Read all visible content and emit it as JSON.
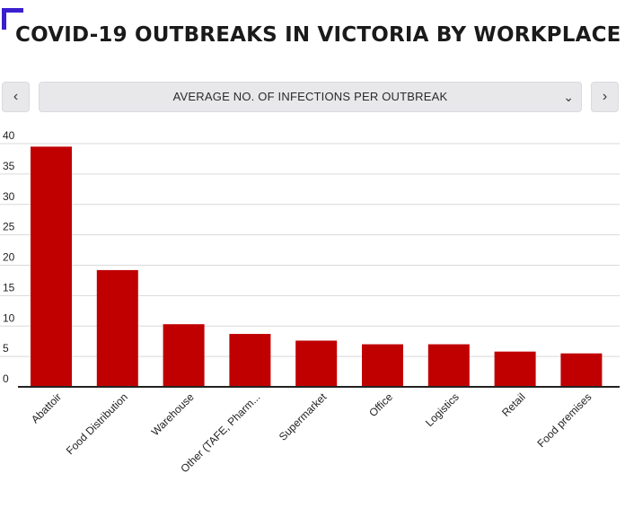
{
  "title": "COVID-19 OUTBREAKS IN VICTORIA BY WORKPLACE",
  "controls": {
    "prev_icon": "chevron-left-icon",
    "next_icon": "chevron-right-icon",
    "dropdown_icon": "chevron-down-icon",
    "selected_metric": "AVERAGE NO. OF INFECTIONS PER OUTBREAK"
  },
  "colors": {
    "bar": "#c00000",
    "accent": "#3a1fd0",
    "grid": "#d9d9d9",
    "axis": "#222222"
  },
  "chart_data": {
    "type": "bar",
    "categories": [
      "Abattoir",
      "Food Distribution",
      "Warehouse",
      "Other (TAFE, Pharm...",
      "Supermarket",
      "Office",
      "Logistics",
      "Retail",
      "Food premises"
    ],
    "values": [
      39.5,
      19.2,
      10.3,
      8.7,
      7.6,
      7.0,
      7.0,
      5.8,
      5.5
    ],
    "yticks": [
      0,
      5,
      10,
      15,
      20,
      25,
      30,
      35,
      40
    ],
    "ylim": [
      0,
      40
    ],
    "grid": true,
    "xlabel": "",
    "ylabel": ""
  }
}
